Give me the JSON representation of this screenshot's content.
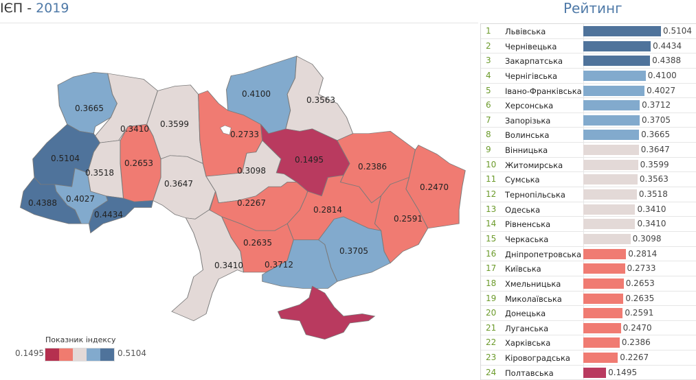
{
  "title": {
    "prefix": "ІЄП",
    "separator": " - ",
    "year": "2019"
  },
  "legend": {
    "title": "Показник індексу",
    "min": "0.1495",
    "max": "0.5104",
    "colors": [
      "#b5304f",
      "#f07b6f",
      "#e3d9d7",
      "#82aacd",
      "#4f739b"
    ]
  },
  "colors": {
    "crimson": "#b93a5f",
    "salmon": "#f07b72",
    "grey": "#e3d9d7",
    "light_blue": "#82aacd",
    "dark_blue": "#4f739b",
    "rank": "#6b9a2a",
    "accent": "#4e79a7"
  },
  "ranking": {
    "title": "Рейтинг",
    "rows": [
      {
        "rank": "1",
        "name": "Львівська",
        "value": 0.5104,
        "label": "0.5104"
      },
      {
        "rank": "2",
        "name": "Чернівецька",
        "value": 0.4434,
        "label": "0.4434"
      },
      {
        "rank": "3",
        "name": "Закарпатська",
        "value": 0.4388,
        "label": "0.4388"
      },
      {
        "rank": "4",
        "name": "Чернігівська",
        "value": 0.41,
        "label": "0.4100"
      },
      {
        "rank": "5",
        "name": "Івано-Франківська",
        "value": 0.4027,
        "label": "0.4027"
      },
      {
        "rank": "6",
        "name": "Херсонська",
        "value": 0.3712,
        "label": "0.3712"
      },
      {
        "rank": "7",
        "name": "Запорізька",
        "value": 0.3705,
        "label": "0.3705"
      },
      {
        "rank": "8",
        "name": "Волинська",
        "value": 0.3665,
        "label": "0.3665"
      },
      {
        "rank": "9",
        "name": "Вінницька",
        "value": 0.3647,
        "label": "0.3647"
      },
      {
        "rank": "10",
        "name": "Житомирська",
        "value": 0.3599,
        "label": "0.3599"
      },
      {
        "rank": "11",
        "name": "Сумська",
        "value": 0.3563,
        "label": "0.3563"
      },
      {
        "rank": "12",
        "name": "Тернопільська",
        "value": 0.3518,
        "label": "0.3518"
      },
      {
        "rank": "13",
        "name": "Одеська",
        "value": 0.341,
        "label": "0.3410"
      },
      {
        "rank": "14",
        "name": "Рівненська",
        "value": 0.341,
        "label": "0.3410"
      },
      {
        "rank": "15",
        "name": "Черкаська",
        "value": 0.3098,
        "label": "0.3098"
      },
      {
        "rank": "16",
        "name": "Дніпропетровська",
        "value": 0.2814,
        "label": "0.2814"
      },
      {
        "rank": "17",
        "name": "Київська",
        "value": 0.2733,
        "label": "0.2733"
      },
      {
        "rank": "18",
        "name": "Хмельницька",
        "value": 0.2653,
        "label": "0.2653"
      },
      {
        "rank": "19",
        "name": "Миколаївська",
        "value": 0.2635,
        "label": "0.2635"
      },
      {
        "rank": "20",
        "name": "Донецька",
        "value": 0.2591,
        "label": "0.2591"
      },
      {
        "rank": "21",
        "name": "Луганська",
        "value": 0.247,
        "label": "0.2470"
      },
      {
        "rank": "22",
        "name": "Харківська",
        "value": 0.2386,
        "label": "0.2386"
      },
      {
        "rank": "23",
        "name": "Кіровоградська",
        "value": 0.2267,
        "label": "0.2267"
      },
      {
        "rank": "24",
        "name": "Полтавська",
        "value": 0.1495,
        "label": "0.1495"
      }
    ]
  },
  "chart_data": [
    {
      "type": "map",
      "title": "ІЄП - 2019",
      "legend_title": "Показник індексу",
      "legend_range": [
        0.1495,
        0.5104
      ],
      "legend_placement": "bottom-left",
      "regions": [
        {
          "name": "Волинська",
          "value": 0.3665
        },
        {
          "name": "Рівненська",
          "value": 0.341
        },
        {
          "name": "Житомирська",
          "value": 0.3599
        },
        {
          "name": "Хмельницька",
          "value": 0.2653
        },
        {
          "name": "Тернопільська",
          "value": 0.3518
        },
        {
          "name": "Львівська",
          "value": 0.5104
        },
        {
          "name": "Івано-Франківська",
          "value": 0.4027
        },
        {
          "name": "Закарпатська",
          "value": 0.4388
        },
        {
          "name": "Чернівецька",
          "value": 0.4434
        },
        {
          "name": "Вінницька",
          "value": 0.3647
        },
        {
          "name": "Київська",
          "value": 0.2733
        },
        {
          "name": "Чернігівська",
          "value": 0.41
        },
        {
          "name": "Сумська",
          "value": 0.3563
        },
        {
          "name": "Полтавська",
          "value": 0.1495
        },
        {
          "name": "Черкаська",
          "value": 0.3098
        },
        {
          "name": "Харківська",
          "value": 0.2386
        },
        {
          "name": "Луганська",
          "value": 0.247
        },
        {
          "name": "Донецька",
          "value": 0.2591
        },
        {
          "name": "Дніпропетровська",
          "value": 0.2814
        },
        {
          "name": "Кіровоградська",
          "value": 0.2267
        },
        {
          "name": "Миколаївська",
          "value": 0.2635
        },
        {
          "name": "Запорізька",
          "value": 0.3705
        },
        {
          "name": "Херсонська",
          "value": 0.3712
        },
        {
          "name": "Одеська",
          "value": 0.341
        }
      ]
    },
    {
      "type": "bar",
      "title": "Рейтинг",
      "orientation": "horizontal",
      "data_labels": true,
      "xlim": [
        0,
        0.5104
      ]
    }
  ]
}
